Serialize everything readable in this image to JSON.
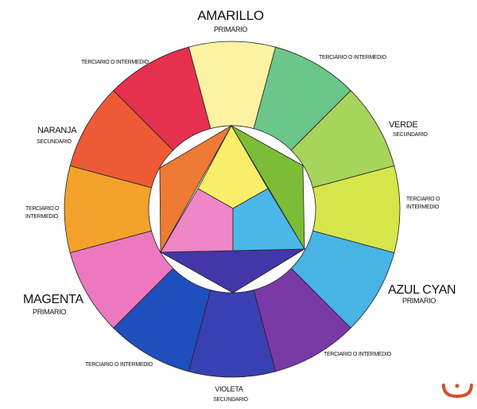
{
  "ring_segments": [
    {
      "hue": "amarillo",
      "color": "#fbf3a2"
    },
    {
      "hue": "terciario-amarillo-verde",
      "color": "#6cc58a"
    },
    {
      "hue": "verde",
      "color": "#a7d45a"
    },
    {
      "hue": "terciario-verde-cyan",
      "color": "#d6e64a"
    },
    {
      "hue": "azul-cyan",
      "color": "#48b4e6"
    },
    {
      "hue": "terciario-cyan-violeta",
      "color": "#7a3aa6"
    },
    {
      "hue": "violeta",
      "color": "#3940b2"
    },
    {
      "hue": "terciario-violeta-magenta",
      "color": "#1f4fbc"
    },
    {
      "hue": "magenta",
      "color": "#ee78c0"
    },
    {
      "hue": "terciario-magenta-naranja",
      "color": "#f5a22c"
    },
    {
      "hue": "naranja",
      "color": "#ee5a36"
    },
    {
      "hue": "terciario-naranja-amarillo",
      "color": "#e6304f"
    }
  ],
  "center": {
    "yellow": "#f8ee6a",
    "pink": "#ee86c8",
    "cyan": "#4cb8e8",
    "orange": "#ef7a34",
    "green": "#7cbc36",
    "violet": "#4336a8"
  },
  "labels": {
    "amarillo": "AMARILLO",
    "amarillo_sub": "PRIMARIO",
    "terciario_top_left": "TERCIARIO O INTERMEDIO",
    "terciario_top_right": "TERCIARIO O INTERMEDIO",
    "naranja": "NARANJA",
    "naranja_sub": "SECUNDARIO",
    "verde": "VERDE",
    "verde_sub": "SECUNDARIO",
    "terciario_right_1": "TERCIARIO O",
    "terciario_right_2": "INTERMEDIO",
    "terciario_left_1": "TERCIARIO O",
    "terciario_left_2": "INTERMEDIO",
    "magenta": "MAGENTA",
    "magenta_sub": "PRIMARIO",
    "azul_cyan": "AZUL CYAN",
    "azul_cyan_sub": "PRIMARIO",
    "terciario_bottom_right": "TERCIARIO O INTERMEDIO",
    "terciario_bottom_left": "TERCIARIO O INTERMEDIO",
    "violeta": "VIOLETA",
    "violeta_sub": "SECUNDARIO"
  },
  "watermark": {
    "color": "#d4502e"
  }
}
